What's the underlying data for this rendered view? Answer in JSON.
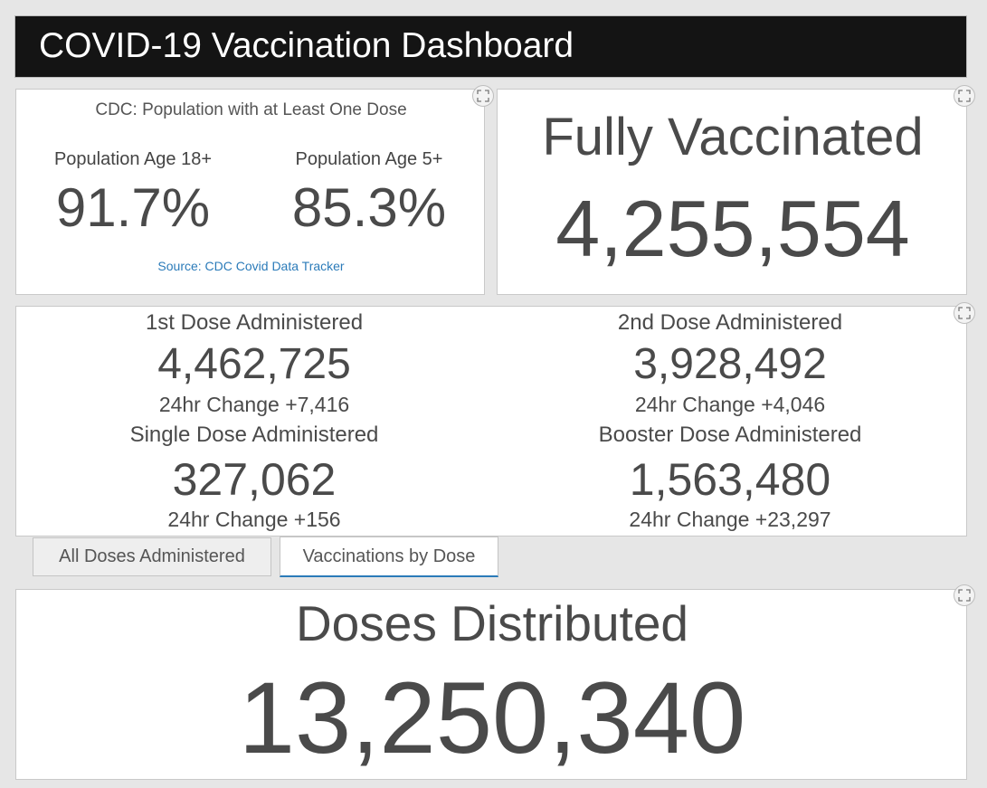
{
  "header": {
    "title": "COVID-19 Vaccination Dashboard"
  },
  "cdc_panel": {
    "title": "CDC: Population with at Least One Dose",
    "groups": [
      {
        "label": "Population Age 18+",
        "value": "91.7%"
      },
      {
        "label": "Population Age 5+",
        "value": "85.3%"
      }
    ],
    "source": "Source: CDC Covid Data Tracker"
  },
  "fully_vaccinated": {
    "label": "Fully Vaccinated",
    "value": "4,255,554"
  },
  "doses": [
    {
      "label": "1st Dose Administered",
      "value": "4,462,725",
      "change": "24hr Change +7,416"
    },
    {
      "label": "2nd Dose Administered",
      "value": "3,928,492",
      "change": "24hr Change +4,046"
    },
    {
      "label": "Single Dose Administered",
      "value": "327,062",
      "change": "24hr Change +156"
    },
    {
      "label": "Booster Dose Administered",
      "value": "1,563,480",
      "change": "24hr Change +23,297"
    }
  ],
  "tabs": [
    {
      "label": "All Doses Administered",
      "active": false
    },
    {
      "label": "Vaccinations by Dose",
      "active": true
    }
  ],
  "doses_distributed": {
    "label": "Doses Distributed",
    "value": "13,250,340"
  },
  "icons": {
    "expand": "expand-icon"
  },
  "colors": {
    "header_bg": "#141414",
    "accent": "#2b7bb9",
    "text": "#4a4a4a"
  }
}
